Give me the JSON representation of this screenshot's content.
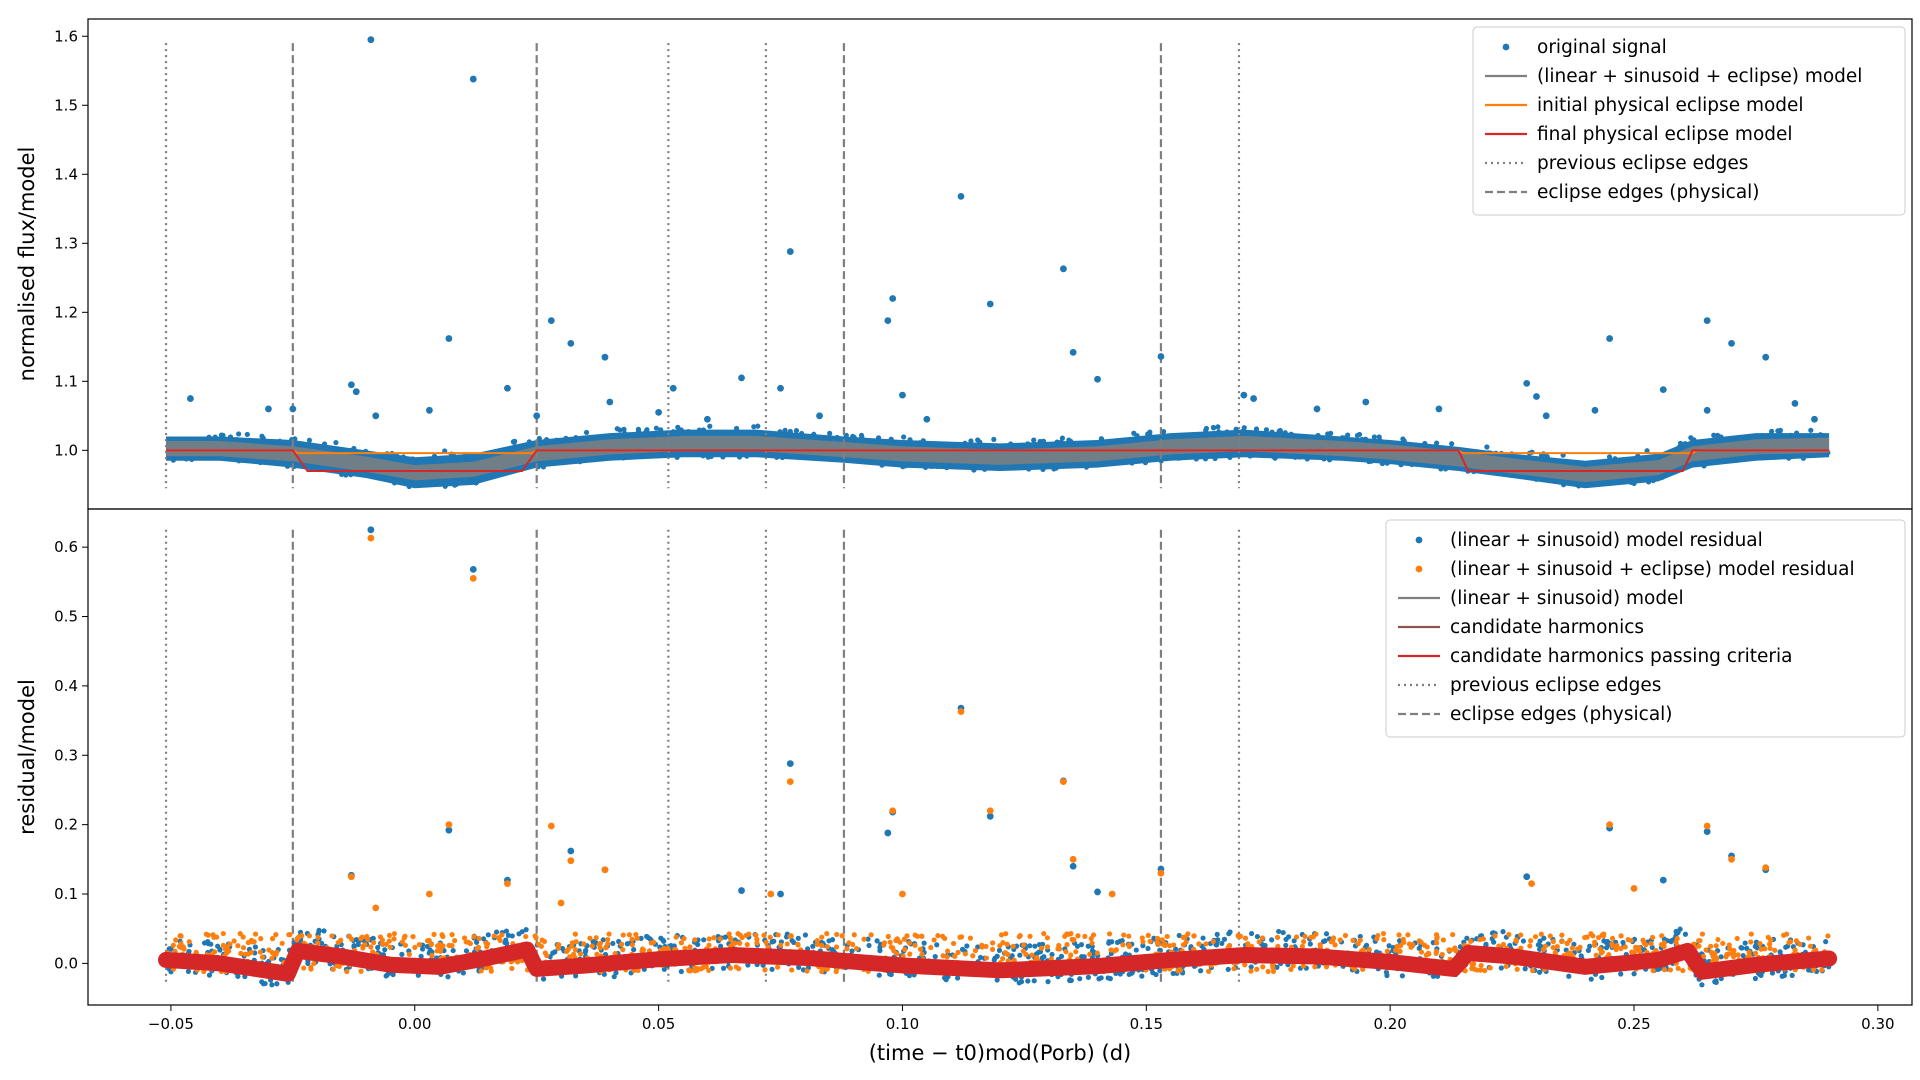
{
  "chart_data": [
    {
      "type": "scatter",
      "panel": "top",
      "ylabel": "normalised flux/model",
      "xlim": [
        -0.067,
        0.307
      ],
      "ylim": [
        0.915,
        1.625
      ],
      "yticks": [
        1.0,
        1.1,
        1.2,
        1.3,
        1.4,
        1.5,
        1.6
      ],
      "ytick_labels": [
        "1.0",
        "1.1",
        "1.2",
        "1.3",
        "1.4",
        "1.5",
        "1.6"
      ],
      "legend": {
        "position": "top-right",
        "entries": [
          {
            "label": "original signal",
            "kind": "marker",
            "color": "#1f77b4"
          },
          {
            "label": "(linear + sinusoid + eclipse) model",
            "kind": "line",
            "color": "#7f7f7f"
          },
          {
            "label": "initial physical eclipse model",
            "kind": "line",
            "color": "#ff7f0e"
          },
          {
            "label": "final physical eclipse model",
            "kind": "line",
            "color": "#d62728"
          },
          {
            "label": "previous eclipse edges",
            "kind": "dotted",
            "color": "#7f7f7f"
          },
          {
            "label": "eclipse edges (physical)",
            "kind": "dashed",
            "color": "#7f7f7f"
          }
        ]
      },
      "baseline_band": {
        "x": [
          -0.051,
          -0.04,
          -0.025,
          -0.01,
          0.0,
          0.012,
          0.025,
          0.04,
          0.055,
          0.07,
          0.088,
          0.1,
          0.12,
          0.14,
          0.155,
          0.17,
          0.19,
          0.2,
          0.214,
          0.225,
          0.24,
          0.255,
          0.262,
          0.275,
          0.29
        ],
        "low": [
          0.985,
          0.985,
          0.975,
          0.96,
          0.945,
          0.95,
          0.975,
          0.985,
          0.99,
          0.99,
          0.982,
          0.975,
          0.97,
          0.975,
          0.985,
          0.99,
          0.985,
          0.98,
          0.97,
          0.96,
          0.945,
          0.955,
          0.975,
          0.985,
          0.99
        ],
        "high": [
          1.02,
          1.02,
          1.015,
          1.0,
          0.99,
          0.995,
          1.015,
          1.025,
          1.03,
          1.03,
          1.02,
          1.015,
          1.01,
          1.015,
          1.025,
          1.03,
          1.02,
          1.015,
          1.005,
          0.995,
          0.985,
          0.995,
          1.015,
          1.025,
          1.025
        ]
      },
      "outliers": [
        {
          "x": -0.009,
          "y": 1.595
        },
        {
          "x": 0.012,
          "y": 1.538
        },
        {
          "x": 0.112,
          "y": 1.368
        },
        {
          "x": 0.077,
          "y": 1.288
        },
        {
          "x": 0.133,
          "y": 1.263
        },
        {
          "x": 0.098,
          "y": 1.22
        },
        {
          "x": 0.118,
          "y": 1.212
        },
        {
          "x": 0.097,
          "y": 1.188
        },
        {
          "x": 0.028,
          "y": 1.188
        },
        {
          "x": 0.265,
          "y": 1.188
        },
        {
          "x": 0.007,
          "y": 1.162
        },
        {
          "x": 0.245,
          "y": 1.162
        },
        {
          "x": 0.032,
          "y": 1.155
        },
        {
          "x": 0.27,
          "y": 1.155
        },
        {
          "x": 0.135,
          "y": 1.142
        },
        {
          "x": 0.039,
          "y": 1.135
        },
        {
          "x": 0.153,
          "y": 1.136
        },
        {
          "x": 0.277,
          "y": 1.135
        },
        {
          "x": 0.067,
          "y": 1.105
        },
        {
          "x": 0.14,
          "y": 1.103
        },
        {
          "x": 0.228,
          "y": 1.097
        },
        {
          "x": -0.013,
          "y": 1.095
        },
        {
          "x": 0.019,
          "y": 1.09
        },
        {
          "x": 0.053,
          "y": 1.09
        },
        {
          "x": 0.075,
          "y": 1.09
        },
        {
          "x": 0.256,
          "y": 1.088
        },
        {
          "x": -0.012,
          "y": 1.085
        },
        {
          "x": 0.1,
          "y": 1.08
        },
        {
          "x": 0.17,
          "y": 1.08
        },
        {
          "x": 0.23,
          "y": 1.078
        },
        {
          "x": -0.046,
          "y": 1.075
        },
        {
          "x": 0.04,
          "y": 1.07
        },
        {
          "x": 0.283,
          "y": 1.068
        },
        {
          "x": 0.003,
          "y": 1.058
        },
        {
          "x": 0.242,
          "y": 1.058
        },
        {
          "x": 0.265,
          "y": 1.058
        },
        {
          "x": -0.008,
          "y": 1.05
        },
        {
          "x": 0.025,
          "y": 1.05
        },
        {
          "x": 0.232,
          "y": 1.05
        },
        {
          "x": 0.06,
          "y": 1.045
        },
        {
          "x": 0.083,
          "y": 1.05
        },
        {
          "x": 0.172,
          "y": 1.075
        },
        {
          "x": 0.05,
          "y": 1.055
        },
        {
          "x": 0.105,
          "y": 1.045
        },
        {
          "x": 0.185,
          "y": 1.06
        },
        {
          "x": 0.195,
          "y": 1.07
        },
        {
          "x": 0.21,
          "y": 1.06
        },
        {
          "x": 0.287,
          "y": 1.045
        },
        {
          "x": -0.03,
          "y": 1.06
        },
        {
          "x": -0.025,
          "y": 1.06
        }
      ],
      "model_physical_initial": {
        "x": [
          -0.051,
          -0.025,
          -0.024,
          0.024,
          0.025,
          0.214,
          0.215,
          0.262,
          0.263,
          0.29
        ],
        "y": [
          1.0,
          1.0,
          0.996,
          0.996,
          1.0,
          1.0,
          0.996,
          0.996,
          1.0,
          1.0
        ]
      },
      "model_physical_final": {
        "x": [
          -0.051,
          -0.025,
          -0.022,
          0.022,
          0.025,
          0.214,
          0.216,
          0.26,
          0.262,
          0.29
        ],
        "y": [
          1.0,
          1.0,
          0.97,
          0.97,
          1.0,
          1.0,
          0.97,
          0.97,
          1.0,
          1.0
        ]
      }
    },
    {
      "type": "scatter",
      "panel": "bottom",
      "xlabel": "(time − t0)mod(Porb) (d)",
      "ylabel": "residual/model",
      "xlim": [
        -0.067,
        0.307
      ],
      "ylim": [
        -0.06,
        0.655
      ],
      "xticks": [
        -0.05,
        0.0,
        0.05,
        0.1,
        0.15,
        0.2,
        0.25,
        0.3
      ],
      "xtick_labels": [
        "−0.05",
        "0.00",
        "0.05",
        "0.10",
        "0.15",
        "0.20",
        "0.25",
        "0.30"
      ],
      "yticks": [
        0.0,
        0.1,
        0.2,
        0.3,
        0.4,
        0.5,
        0.6
      ],
      "ytick_labels": [
        "0.0",
        "0.1",
        "0.2",
        "0.3",
        "0.4",
        "0.5",
        "0.6"
      ],
      "legend": {
        "position": "top-right",
        "entries": [
          {
            "label": "(linear + sinusoid) model residual",
            "kind": "marker",
            "color": "#1f77b4"
          },
          {
            "label": "(linear + sinusoid + eclipse) model residual",
            "kind": "marker",
            "color": "#ff7f0e"
          },
          {
            "label": "(linear + sinusoid) model",
            "kind": "line",
            "color": "#7f7f7f"
          },
          {
            "label": "candidate harmonics",
            "kind": "line",
            "color": "#8c564b"
          },
          {
            "label": "candidate harmonics passing criteria",
            "kind": "line",
            "color": "#d62728"
          },
          {
            "label": "previous eclipse edges",
            "kind": "dotted",
            "color": "#7f7f7f"
          },
          {
            "label": "eclipse edges (physical)",
            "kind": "dashed",
            "color": "#7f7f7f"
          }
        ]
      },
      "residual_blue_outliers": [
        {
          "x": -0.009,
          "y": 0.625
        },
        {
          "x": 0.012,
          "y": 0.568
        },
        {
          "x": 0.112,
          "y": 0.368
        },
        {
          "x": 0.077,
          "y": 0.288
        },
        {
          "x": 0.133,
          "y": 0.263
        },
        {
          "x": 0.118,
          "y": 0.212
        },
        {
          "x": 0.098,
          "y": 0.218
        },
        {
          "x": 0.007,
          "y": 0.192
        },
        {
          "x": 0.245,
          "y": 0.195
        },
        {
          "x": 0.265,
          "y": 0.19
        },
        {
          "x": 0.097,
          "y": 0.188
        },
        {
          "x": 0.032,
          "y": 0.162
        },
        {
          "x": 0.27,
          "y": 0.155
        },
        {
          "x": 0.135,
          "y": 0.14
        },
        {
          "x": 0.039,
          "y": 0.135
        },
        {
          "x": 0.153,
          "y": 0.136
        },
        {
          "x": 0.277,
          "y": 0.135
        },
        {
          "x": -0.013,
          "y": 0.127
        },
        {
          "x": 0.019,
          "y": 0.12
        },
        {
          "x": 0.228,
          "y": 0.125
        },
        {
          "x": 0.067,
          "y": 0.105
        },
        {
          "x": 0.14,
          "y": 0.103
        },
        {
          "x": 0.256,
          "y": 0.12
        },
        {
          "x": 0.075,
          "y": 0.1
        }
      ],
      "residual_orange_outliers": [
        {
          "x": -0.009,
          "y": 0.613
        },
        {
          "x": 0.012,
          "y": 0.555
        },
        {
          "x": 0.112,
          "y": 0.363
        },
        {
          "x": 0.077,
          "y": 0.262
        },
        {
          "x": 0.133,
          "y": 0.262
        },
        {
          "x": 0.118,
          "y": 0.22
        },
        {
          "x": 0.098,
          "y": 0.22
        },
        {
          "x": 0.007,
          "y": 0.2
        },
        {
          "x": 0.028,
          "y": 0.198
        },
        {
          "x": 0.245,
          "y": 0.2
        },
        {
          "x": 0.265,
          "y": 0.198
        },
        {
          "x": 0.032,
          "y": 0.148
        },
        {
          "x": 0.135,
          "y": 0.15
        },
        {
          "x": 0.27,
          "y": 0.15
        },
        {
          "x": 0.039,
          "y": 0.135
        },
        {
          "x": 0.153,
          "y": 0.13
        },
        {
          "x": 0.277,
          "y": 0.138
        },
        {
          "x": -0.013,
          "y": 0.125
        },
        {
          "x": 0.019,
          "y": 0.115
        },
        {
          "x": 0.229,
          "y": 0.115
        },
        {
          "x": 0.03,
          "y": 0.087
        },
        {
          "x": -0.008,
          "y": 0.08
        },
        {
          "x": 0.003,
          "y": 0.1
        },
        {
          "x": 0.073,
          "y": 0.1
        },
        {
          "x": 0.1,
          "y": 0.1
        },
        {
          "x": 0.143,
          "y": 0.1
        },
        {
          "x": 0.25,
          "y": 0.108
        }
      ],
      "harmonics_passing": {
        "x": [
          -0.051,
          -0.04,
          -0.026,
          -0.024,
          -0.015,
          -0.005,
          0.005,
          0.015,
          0.023,
          0.025,
          0.035,
          0.05,
          0.065,
          0.08,
          0.1,
          0.12,
          0.14,
          0.155,
          0.17,
          0.185,
          0.2,
          0.213,
          0.216,
          0.225,
          0.24,
          0.255,
          0.261,
          0.264,
          0.275,
          0.29
        ],
        "y": [
          0.005,
          0.0,
          -0.015,
          0.018,
          0.01,
          -0.002,
          -0.005,
          0.008,
          0.02,
          -0.008,
          -0.003,
          0.006,
          0.012,
          0.008,
          -0.003,
          -0.01,
          -0.004,
          0.005,
          0.012,
          0.01,
          0.002,
          -0.008,
          0.015,
          0.01,
          -0.005,
          0.005,
          0.018,
          -0.012,
          -0.002,
          0.007
        ]
      }
    }
  ],
  "layout_data": {
    "colors": {
      "blue": "#1f77b4",
      "orange": "#ff7f0e",
      "red": "#d62728",
      "gray": "#7f7f7f",
      "brown": "#8c564b"
    },
    "previous_eclipse_edges": [
      -0.051,
      0.052,
      0.072,
      0.169
    ],
    "eclipse_edges_physical": [
      -0.025,
      0.025,
      0.088,
      0.153
    ]
  }
}
